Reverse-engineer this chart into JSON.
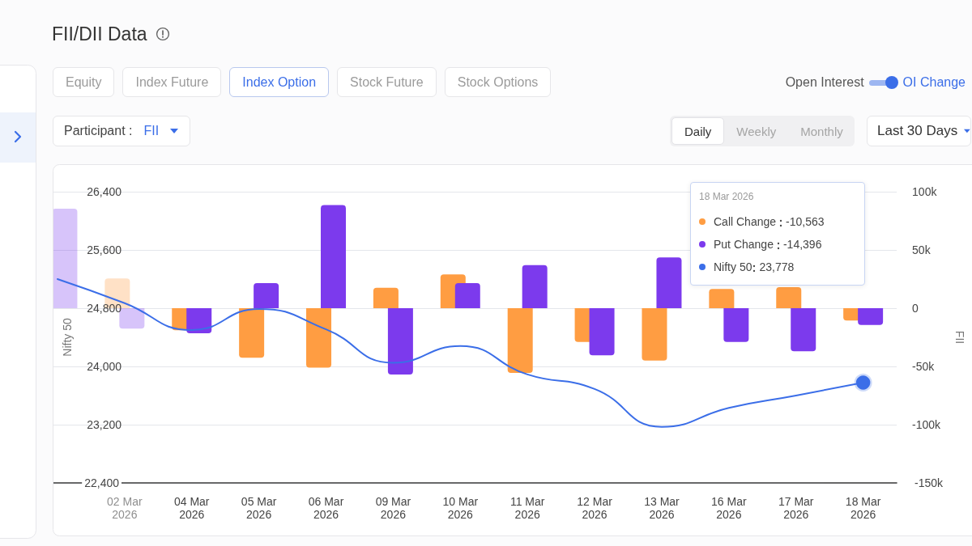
{
  "chart_data": {
    "type": "bar",
    "title": "FII/DII Data",
    "ylabel": "Nifty 50",
    "y2label": "FII",
    "categories": [
      null,
      "02 Mar 2026",
      "04 Mar 2026",
      "05 Mar 2026",
      "06 Mar 2026",
      "09 Mar 2026",
      "10 Mar 2026",
      "11 Mar 2026",
      "12 Mar 2026",
      "13 Mar 2026",
      "16 Mar 2026",
      "17 Mar 2026",
      "18 Mar 2026"
    ],
    "series": [
      {
        "name": "Call Change",
        "axis": "y2",
        "color": "#ff9d42",
        "values": [
          null,
          25500,
          -19000,
          -42500,
          -51000,
          17500,
          29000,
          -55500,
          -29000,
          -45000,
          16500,
          18000,
          -10563
        ]
      },
      {
        "name": "Put Change",
        "axis": "y2",
        "color": "#7c3aed",
        "values": [
          85500,
          -17500,
          -21500,
          21500,
          88500,
          -57000,
          21500,
          37000,
          -40500,
          43500,
          -29000,
          -37000,
          -14396
        ]
      },
      {
        "name": "Nifty 50",
        "type": "line",
        "color": "#3b6ee8",
        "values": [
          25200,
          24870,
          24500,
          24790,
          24510,
          24050,
          24280,
          23890,
          23690,
          23170,
          23430,
          23600,
          23778
        ]
      }
    ],
    "ylim": [
      22400,
      26400
    ],
    "yticks": [
      {
        "value": 22400,
        "label": "22,400"
      },
      {
        "value": 23200,
        "label": "23,200"
      },
      {
        "value": 24000,
        "label": "24,000"
      },
      {
        "value": 24800,
        "label": "24,800"
      },
      {
        "value": 25600,
        "label": "25,600"
      },
      {
        "value": 26400,
        "label": "26,400"
      }
    ],
    "y2lim": [
      -150000,
      100000
    ],
    "y2ticks": [
      {
        "value": -150000,
        "label": "-150k"
      },
      {
        "value": -100000,
        "label": "-100k"
      },
      {
        "value": -50000,
        "label": "-50k"
      },
      0,
      {
        "value": 50000,
        "label": "50k"
      },
      {
        "value": 100000,
        "label": "100k"
      }
    ],
    "grid": "y",
    "legend": "top right",
    "marker": "none",
    "annotations": [
      "Equity",
      "Index Future",
      "Index Option",
      "Stock Future",
      "Stock Options",
      "Open Interest",
      "OI Change",
      "Participant :",
      "FII",
      "Daily",
      "Weekly",
      "Monthly",
      "Last 30 Days",
      "18 Mar 2026",
      "-10,563",
      "-14,396",
      "23,778"
    ]
  }
}
